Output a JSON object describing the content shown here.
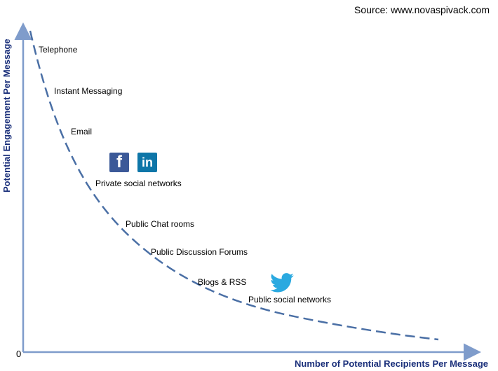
{
  "source": "Source: www.novaspivack.com",
  "chart_data": {
    "type": "line",
    "title": "",
    "xlabel": "Number of Potential Recipients Per Message",
    "ylabel": "Potential Engagement Per Message",
    "origin_label": "0",
    "grid": false,
    "points": [
      {
        "label": "Telephone"
      },
      {
        "label": "Instant Messaging"
      },
      {
        "label": "Email"
      },
      {
        "label": "Private social networks"
      },
      {
        "label": "Public Chat rooms"
      },
      {
        "label": "Public Discussion Forums"
      },
      {
        "label": "Blogs & RSS"
      },
      {
        "label": "Public social networks"
      }
    ],
    "colors": {
      "axis": "#7f9ccb",
      "curve": "#4a6fa5",
      "axis_title": "#1a2f7a"
    }
  },
  "logos": [
    {
      "name": "facebook-icon",
      "glyph": "f",
      "color": "#3b5998"
    },
    {
      "name": "linkedin-icon",
      "glyph": "in",
      "color": "#0e76a8"
    },
    {
      "name": "twitter-icon",
      "color": "#2aa9e0"
    }
  ]
}
